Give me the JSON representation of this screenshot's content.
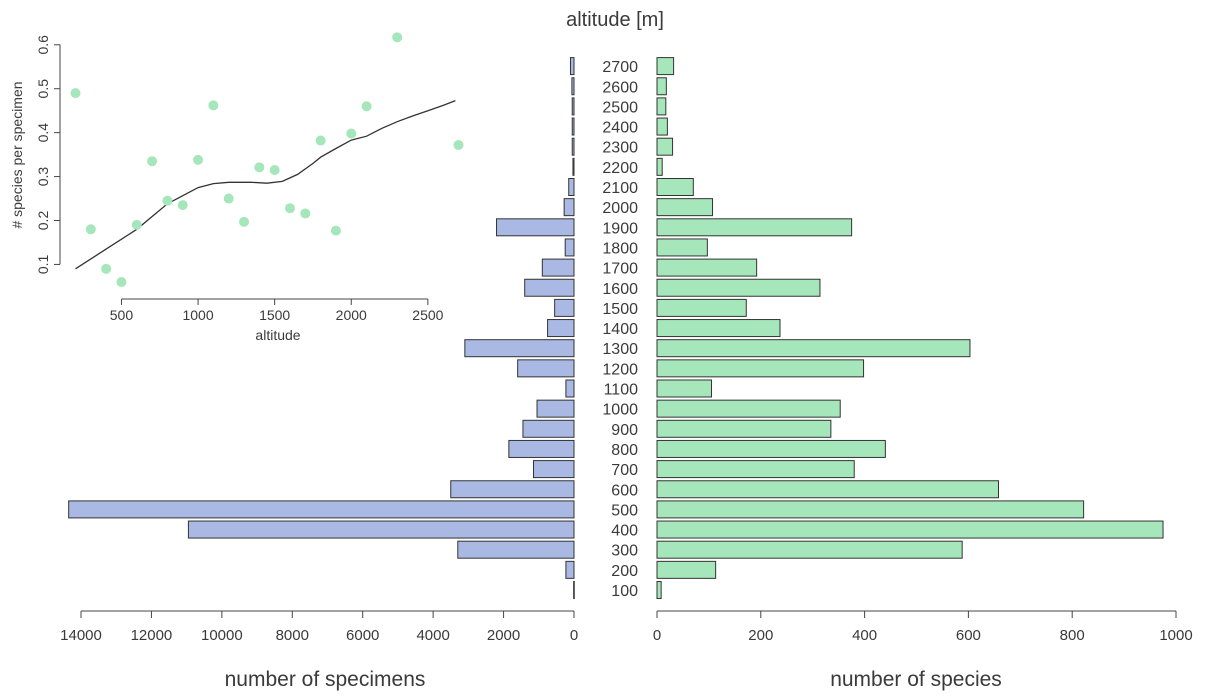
{
  "chart_data": [
    {
      "type": "bar",
      "orientation": "horizontal",
      "title": "altitude [m]",
      "xlabel": "number of specimens",
      "ylabel": "",
      "x_direction": "reversed",
      "xlim": [
        0,
        14000
      ],
      "xticks": [
        0,
        2000,
        4000,
        6000,
        8000,
        10000,
        12000,
        14000
      ],
      "categories": [
        "100",
        "200",
        "300",
        "400",
        "500",
        "600",
        "700",
        "800",
        "900",
        "1000",
        "1100",
        "1200",
        "1300",
        "1400",
        "1500",
        "1600",
        "1700",
        "1800",
        "1900",
        "2000",
        "2100",
        "2200",
        "2300",
        "2400",
        "2500",
        "2600",
        "2700"
      ],
      "values": [
        10,
        230,
        3300,
        10950,
        14350,
        3500,
        1150,
        1850,
        1450,
        1050,
        230,
        1600,
        3100,
        750,
        550,
        1400,
        900,
        250,
        2200,
        280,
        150,
        30,
        50,
        50,
        50,
        60,
        100
      ],
      "color": "#a9b9e3",
      "grid": false
    },
    {
      "type": "bar",
      "orientation": "horizontal",
      "xlabel": "number of species",
      "ylabel": "",
      "xlim": [
        0,
        1000
      ],
      "xticks": [
        0,
        200,
        400,
        600,
        800,
        1000
      ],
      "categories": [
        "100",
        "200",
        "300",
        "400",
        "500",
        "600",
        "700",
        "800",
        "900",
        "1000",
        "1100",
        "1200",
        "1300",
        "1400",
        "1500",
        "1600",
        "1700",
        "1800",
        "1900",
        "2000",
        "2100",
        "2200",
        "2300",
        "2400",
        "2500",
        "2600",
        "2700"
      ],
      "values": [
        8,
        113,
        588,
        975,
        822,
        658,
        380,
        440,
        335,
        353,
        105,
        398,
        603,
        237,
        172,
        314,
        192,
        97,
        375,
        107,
        70,
        10,
        30,
        20,
        17,
        18,
        32
      ],
      "color": "#a6e6bb",
      "grid": false
    },
    {
      "type": "scatter",
      "xlabel": "altitude",
      "ylabel": "# species per specimen",
      "xlim": [
        200,
        2700
      ],
      "ylim": [
        0.06,
        0.62
      ],
      "xticks": [
        500,
        1000,
        1500,
        2000,
        2500
      ],
      "yticks": [
        0.1,
        0.2,
        0.3,
        0.4,
        0.5,
        0.6
      ],
      "series": [
        {
          "color": "#a6e6bb",
          "points": [
            [
              200,
              0.49
            ],
            [
              300,
              0.18
            ],
            [
              400,
              0.09
            ],
            [
              500,
              0.06
            ],
            [
              600,
              0.19
            ],
            [
              700,
              0.335
            ],
            [
              800,
              0.245
            ],
            [
              900,
              0.235
            ],
            [
              1000,
              0.338
            ],
            [
              1100,
              0.462
            ],
            [
              1200,
              0.25
            ],
            [
              1300,
              0.197
            ],
            [
              1400,
              0.321
            ],
            [
              1500,
              0.315
            ],
            [
              1600,
              0.228
            ],
            [
              1700,
              0.216
            ],
            [
              1800,
              0.382
            ],
            [
              1900,
              0.177
            ],
            [
              2000,
              0.398
            ],
            [
              2100,
              0.46
            ],
            [
              2300,
              0.617
            ],
            [
              2700,
              0.372
            ]
          ]
        }
      ],
      "trend_line": {
        "color": "#333333",
        "points": [
          [
            200,
            0.09
          ],
          [
            400,
            0.135
          ],
          [
            600,
            0.18
          ],
          [
            800,
            0.238
          ],
          [
            1000,
            0.275
          ],
          [
            1100,
            0.284
          ],
          [
            1200,
            0.287
          ],
          [
            1350,
            0.287
          ],
          [
            1450,
            0.285
          ],
          [
            1550,
            0.289
          ],
          [
            1650,
            0.305
          ],
          [
            1750,
            0.33
          ],
          [
            1800,
            0.344
          ],
          [
            1900,
            0.364
          ],
          [
            2000,
            0.383
          ],
          [
            2100,
            0.392
          ],
          [
            2200,
            0.41
          ],
          [
            2300,
            0.425
          ],
          [
            2400,
            0.438
          ],
          [
            2500,
            0.45
          ],
          [
            2600,
            0.462
          ],
          [
            2680,
            0.473
          ]
        ]
      },
      "grid": false
    }
  ]
}
